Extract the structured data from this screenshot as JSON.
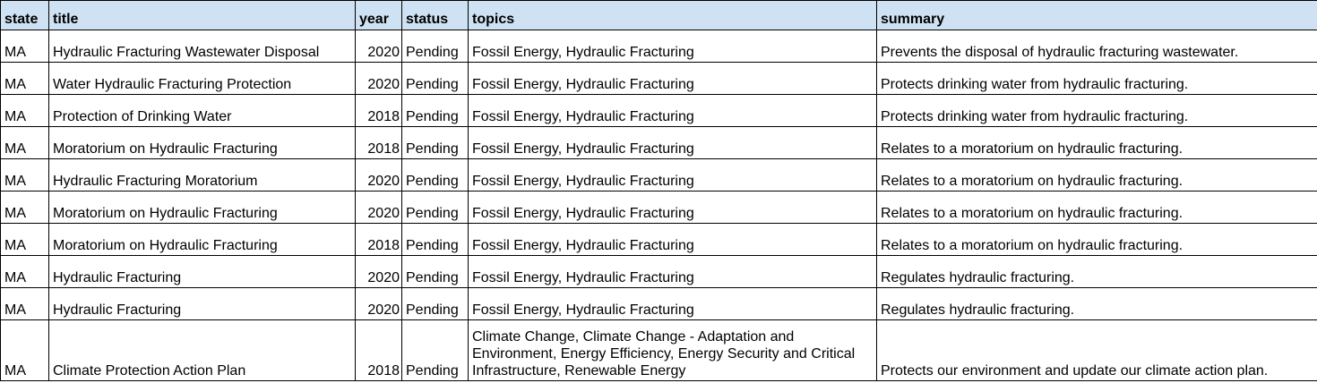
{
  "columns": [
    "state",
    "title",
    "year",
    "status",
    "topics",
    "summary"
  ],
  "rows": [
    {
      "state": "MA",
      "title": "Hydraulic Fracturing Wastewater Disposal",
      "year": "2020",
      "status": "Pending",
      "topics": "Fossil Energy, Hydraulic Fracturing",
      "summary": "Prevents the disposal of hydraulic fracturing wastewater."
    },
    {
      "state": "MA",
      "title": "Water Hydraulic Fracturing Protection",
      "year": "2020",
      "status": "Pending",
      "topics": "Fossil Energy, Hydraulic Fracturing",
      "summary": "Protects drinking water from hydraulic fracturing."
    },
    {
      "state": "MA",
      "title": "Protection of Drinking Water",
      "year": "2018",
      "status": "Pending",
      "topics": "Fossil Energy, Hydraulic Fracturing",
      "summary": "Protects drinking water from hydraulic fracturing."
    },
    {
      "state": "MA",
      "title": "Moratorium on Hydraulic Fracturing",
      "year": "2018",
      "status": "Pending",
      "topics": "Fossil Energy, Hydraulic Fracturing",
      "summary": "Relates to a moratorium on hydraulic fracturing."
    },
    {
      "state": "MA",
      "title": "Hydraulic Fracturing Moratorium",
      "year": "2020",
      "status": "Pending",
      "topics": "Fossil Energy, Hydraulic Fracturing",
      "summary": "Relates to a moratorium on hydraulic fracturing."
    },
    {
      "state": "MA",
      "title": "Moratorium on Hydraulic Fracturing",
      "year": "2020",
      "status": "Pending",
      "topics": "Fossil Energy, Hydraulic Fracturing",
      "summary": "Relates to a moratorium on hydraulic fracturing."
    },
    {
      "state": "MA",
      "title": "Moratorium on Hydraulic Fracturing",
      "year": "2018",
      "status": "Pending",
      "topics": "Fossil Energy, Hydraulic Fracturing",
      "summary": "Relates to a moratorium on hydraulic fracturing."
    },
    {
      "state": "MA",
      "title": "Hydraulic Fracturing",
      "year": "2020",
      "status": "Pending",
      "topics": "Fossil Energy, Hydraulic Fracturing",
      "summary": "Regulates hydraulic fracturing."
    },
    {
      "state": "MA",
      "title": "Hydraulic Fracturing",
      "year": "2020",
      "status": "Pending",
      "topics": "Fossil Energy, Hydraulic Fracturing",
      "summary": "Regulates hydraulic fracturing."
    },
    {
      "state": "MA",
      "title": "Climate Protection Action Plan",
      "year": "2018",
      "status": "Pending",
      "topics": "Climate Change, Climate Change - Adaptation and Environment, Energy Efficiency, Energy Security and Critical Infrastructure, Renewable Energy",
      "summary": "Protects our environment and update our climate action plan."
    }
  ]
}
